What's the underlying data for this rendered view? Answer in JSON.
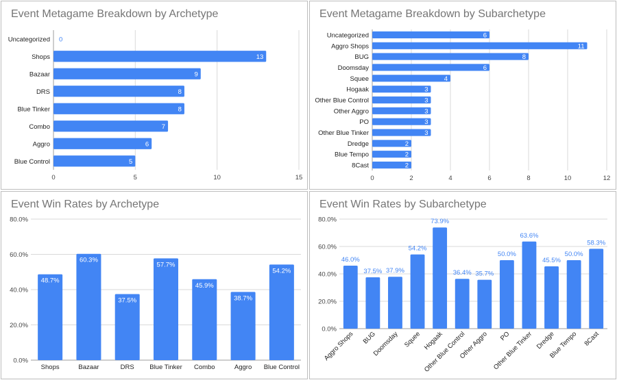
{
  "chart_data": [
    {
      "type": "bar",
      "orientation": "horizontal",
      "title": "Event Metagame Breakdown by Archetype",
      "categories": [
        "Uncategorized",
        "Shops",
        "Bazaar",
        "DRS",
        "Blue Tinker",
        "Combo",
        "Aggro",
        "Blue Control"
      ],
      "values": [
        0,
        13,
        9,
        8,
        8,
        7,
        6,
        5
      ],
      "data_labels": [
        "0",
        "13",
        "9",
        "8",
        "8",
        "7",
        "6",
        "5"
      ],
      "xlim": [
        0,
        15
      ],
      "xticks": [
        0,
        5,
        10,
        15
      ],
      "grid": true,
      "color": "#4285F4"
    },
    {
      "type": "bar",
      "orientation": "horizontal",
      "title": "Event Metagame Breakdown by Subarchetype",
      "categories": [
        "Uncategorized",
        "Aggro Shops",
        "BUG",
        "Doomsday",
        "Squee",
        "Hogaak",
        "Other Blue Control",
        "Other Aggro",
        "PO",
        "Other Blue Tinker",
        "Dredge",
        "Blue Tempo",
        "8Cast"
      ],
      "values": [
        6,
        11,
        8,
        6,
        4,
        3,
        3,
        3,
        3,
        3,
        2,
        2,
        2
      ],
      "data_labels": [
        "6",
        "11",
        "8",
        "6",
        "4",
        "3",
        "3",
        "3",
        "3",
        "3",
        "2",
        "2",
        "2"
      ],
      "xlim": [
        0,
        12
      ],
      "xticks": [
        0,
        2,
        4,
        6,
        8,
        10,
        12
      ],
      "grid": true,
      "color": "#4285F4"
    },
    {
      "type": "bar",
      "orientation": "vertical",
      "title": "Event Win Rates by Archetype",
      "categories": [
        "Shops",
        "Bazaar",
        "DRS",
        "Blue Tinker",
        "Combo",
        "Aggro",
        "Blue Control"
      ],
      "values": [
        48.7,
        60.3,
        37.5,
        57.7,
        45.9,
        38.7,
        54.2
      ],
      "data_labels": [
        "48.7%",
        "60.3%",
        "37.5%",
        "57.7%",
        "45.9%",
        "38.7%",
        "54.2%"
      ],
      "ylim": [
        0,
        80
      ],
      "yticks": [
        "0.0%",
        "20.0%",
        "40.0%",
        "60.0%",
        "80.0%"
      ],
      "grid": true,
      "color": "#4285F4"
    },
    {
      "type": "bar",
      "orientation": "vertical",
      "title": "Event Win Rates by Subarchetype",
      "categories": [
        "Aggro Shops",
        "BUG",
        "Doomsday",
        "Squee",
        "Hogaak",
        "Other Blue Control",
        "Other Aggro",
        "PO",
        "Other Blue Tinker",
        "Dredge",
        "Blue Tempo",
        "8Cast"
      ],
      "values": [
        46.0,
        37.5,
        37.9,
        54.2,
        73.9,
        36.4,
        35.7,
        50.0,
        63.6,
        45.5,
        50.0,
        58.3
      ],
      "data_labels": [
        "46.0%",
        "37.5%",
        "37.9%",
        "54.2%",
        "73.9%",
        "36.4%",
        "35.7%",
        "50.0%",
        "63.6%",
        "45.5%",
        "50.0%",
        "58.3%"
      ],
      "ylim": [
        0,
        80
      ],
      "yticks": [
        "0.0%",
        "20.0%",
        "40.0%",
        "60.0%",
        "80.0%"
      ],
      "grid": true,
      "color": "#4285F4"
    }
  ]
}
